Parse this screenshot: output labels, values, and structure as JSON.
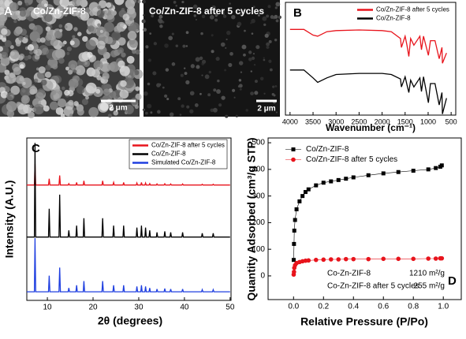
{
  "panel_a": {
    "label": "A",
    "images": [
      {
        "caption": "Co/Zn-ZIF-8",
        "scale_bar": "2 μm"
      },
      {
        "caption": "Co/Zn-ZIF-8 after 5 cycles",
        "scale_bar": "2 μm"
      }
    ]
  },
  "chart_data": [
    {
      "type": "line",
      "label": "B",
      "xlabel": "Wavenumber (cm⁻¹)",
      "xlim": [
        4100,
        400
      ],
      "ylim": [
        0,
        100
      ],
      "xticks": [
        4000,
        3500,
        3000,
        2500,
        2000,
        1500,
        1000,
        500
      ],
      "legend": "upper right",
      "x": [
        4000,
        3700,
        3500,
        3400,
        3200,
        3000,
        2500,
        2000,
        1800,
        1600,
        1580,
        1500,
        1460,
        1420,
        1380,
        1310,
        1180,
        1145,
        1100,
        995,
        950,
        850,
        760,
        700,
        690,
        600
      ],
      "series": [
        {
          "name": "Co/Zn-ZIF-8 after 5 cycles",
          "color": "#e8141c",
          "values": [
            76,
            76,
            71,
            70,
            74,
            75,
            75.5,
            75,
            74,
            68,
            60,
            70,
            62,
            52,
            68,
            62,
            70,
            58,
            70,
            53,
            66,
            66,
            50,
            60,
            46,
            55
          ]
        },
        {
          "name": "Co/Zn-ZIF-8",
          "color": "#000000",
          "values": [
            40,
            40,
            33,
            29,
            33,
            36,
            37,
            37,
            36,
            32,
            25,
            34,
            27,
            20,
            31,
            25,
            33,
            21,
            34,
            11,
            28,
            28,
            9,
            20,
            1,
            15
          ]
        }
      ]
    },
    {
      "type": "line",
      "label": "C",
      "xlabel": "2θ (degrees)",
      "ylabel": "Intensity (A.U.)",
      "xlim": [
        5.5,
        50.2
      ],
      "ylim": [
        0,
        100
      ],
      "xticks": [
        10,
        20,
        30,
        40,
        50
      ],
      "legend": "upper right",
      "x": [
        5.5,
        7.15,
        7.3,
        7.45,
        10.25,
        10.4,
        10.55,
        12.55,
        12.7,
        12.85,
        14.55,
        14.7,
        14.85,
        16.25,
        16.4,
        16.55,
        17.85,
        18.0,
        18.15,
        21.95,
        22.1,
        22.25,
        24.35,
        24.5,
        24.65,
        26.55,
        26.7,
        26.85,
        29.45,
        29.6,
        29.75,
        30.45,
        30.6,
        30.75,
        31.35,
        31.5,
        31.65,
        32.25,
        32.4,
        32.55,
        33.85,
        34.0,
        34.15,
        35.55,
        35.7,
        35.85,
        36.85,
        37.0,
        37.15,
        39.45,
        39.6,
        39.75,
        43.75,
        43.9,
        44.05,
        46.15,
        46.3,
        46.45,
        50
      ],
      "series": [
        {
          "name": "Co/Zn-ZIF-8 after 5 cycles",
          "color": "#e8141c",
          "values": [
            71,
            71,
            84,
            71,
            71,
            74.9,
            71,
            71,
            76.9,
            71,
            71,
            71.9,
            71,
            71,
            72.6,
            71,
            71,
            73.6,
            71,
            71,
            73.6,
            71,
            71,
            72.6,
            71,
            71,
            72.6,
            71,
            71,
            72.3,
            71,
            71,
            72.6,
            71,
            71,
            72.3,
            71,
            71,
            71.9,
            71,
            71,
            71.7,
            71,
            71,
            71.8,
            71,
            71,
            71.7,
            71,
            71,
            71.7,
            71,
            71,
            71.5,
            71,
            71,
            71.5,
            71,
            71
          ]
        },
        {
          "name": "Co/Zn-ZIF-8",
          "color": "#000000",
          "values": [
            39,
            39,
            97,
            39,
            39,
            56.4,
            39,
            39,
            65.1,
            39,
            39,
            43.1,
            39,
            39,
            46,
            39,
            39,
            50.6,
            39,
            39,
            50.6,
            39,
            39,
            46,
            39,
            39,
            46,
            39,
            39,
            44.8,
            39,
            39,
            46,
            39,
            39,
            44.8,
            39,
            39,
            43.1,
            39,
            39,
            41.9,
            39,
            39,
            42.5,
            39,
            39,
            41.9,
            39,
            39,
            41.9,
            39,
            39,
            41.3,
            39,
            39,
            41.3,
            39,
            39
          ]
        },
        {
          "name": "Simulated Co/Zn-ZIF-8",
          "color": "#1f3fe0",
          "values": [
            5.3,
            5.3,
            38.3,
            5.3,
            5.3,
            15.2,
            5.3,
            5.3,
            20.2,
            5.3,
            5.3,
            7.6,
            5.3,
            5.3,
            9.3,
            5.3,
            5.3,
            11.9,
            5.3,
            5.3,
            11.9,
            5.3,
            5.3,
            9.3,
            5.3,
            5.3,
            9.3,
            5.3,
            5.3,
            8.6,
            5.3,
            5.3,
            9.3,
            5.3,
            5.3,
            8.6,
            5.3,
            5.3,
            7.6,
            5.3,
            5.3,
            7,
            5.3,
            5.3,
            7.3,
            5.3,
            5.3,
            7,
            5.3,
            5.3,
            7,
            5.3,
            5.3,
            6.6,
            5.3,
            5.3,
            6.6,
            5.3,
            5.3
          ]
        }
      ]
    },
    {
      "type": "scatter",
      "label": "D",
      "xlabel": "Relative Pressure (P/Po)",
      "ylabel": "Quantity Adsorbed (cm³/g STP)",
      "xlim": [
        -0.17,
        1.12
      ],
      "ylim": [
        -89,
        518
      ],
      "xticks": [
        {
          "value": 0,
          "label": "0.0"
        },
        {
          "value": 0.2,
          "label": "0.2"
        },
        {
          "value": 0.4,
          "label": "0.4"
        },
        {
          "value": 0.6,
          "label": "0.6"
        },
        {
          "value": 0.8,
          "label": "0.8"
        },
        {
          "value": 1,
          "label": "1.0"
        }
      ],
      "yticks": [
        0,
        100,
        200,
        300,
        400,
        500
      ],
      "legend": "upper left",
      "x": [
        0.001,
        0.003,
        0.005,
        0.01,
        0.02,
        0.04,
        0.06,
        0.08,
        0.1,
        0.15,
        0.2,
        0.25,
        0.3,
        0.35,
        0.4,
        0.5,
        0.6,
        0.7,
        0.8,
        0.9,
        0.95,
        0.98,
        0.99
      ],
      "series": [
        {
          "name": "Co/Zn-ZIF-8",
          "color": "#000000",
          "marker": "square",
          "values": [
            60,
            120,
            170,
            210,
            250,
            280,
            300,
            315,
            325,
            340,
            350,
            355,
            360,
            365,
            370,
            378,
            385,
            390,
            395,
            400,
            405,
            410,
            415
          ]
        },
        {
          "name": "Co/Zn-ZIF-8 after 5 cycles",
          "color": "#e8141c",
          "marker": "circle",
          "values": [
            5,
            15,
            30,
            40,
            48,
            52,
            55,
            57,
            58,
            60,
            61,
            62,
            62,
            63,
            63,
            63,
            64,
            64,
            64,
            65,
            65,
            66,
            66
          ]
        }
      ],
      "annotations": [
        "Co-Zn-ZIF-8",
        "1210 m²/g",
        "Co-Zn-ZIF-8 after 5 cycles",
        "255  m²/g"
      ]
    }
  ]
}
